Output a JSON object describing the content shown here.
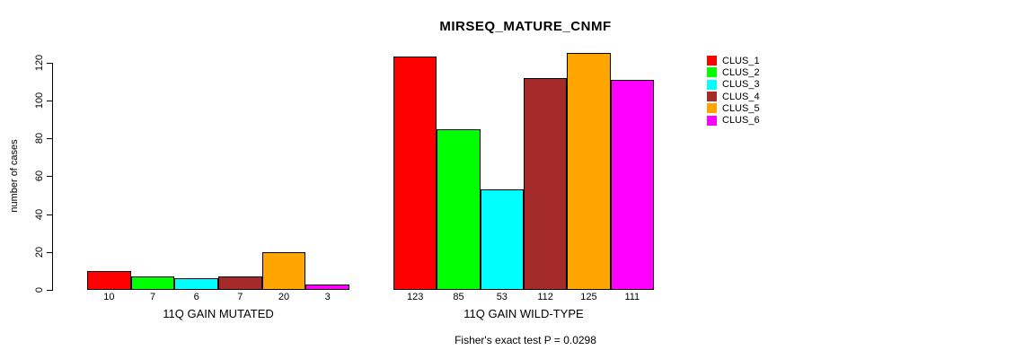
{
  "chart_data": {
    "type": "bar",
    "title": "MIRSEQ_MATURE_CNMF",
    "ylabel": "number of cases",
    "xlabel": "",
    "ylim": [
      0,
      127
    ],
    "yticks": [
      0,
      20,
      40,
      60,
      80,
      100,
      120
    ],
    "grid": false,
    "legend_position": "right",
    "legend_labels": [
      "CLUS_1",
      "CLUS_2",
      "CLUS_3",
      "CLUS_4",
      "CLUS_5",
      "CLUS_6"
    ],
    "series_colors": [
      "#FF0000",
      "#00FF00",
      "#00FFFF",
      "#A52A2A",
      "#FFA500",
      "#FF00FF"
    ],
    "groups": [
      {
        "label": "11Q GAIN MUTATED",
        "values": [
          10,
          7,
          6,
          7,
          20,
          3
        ]
      },
      {
        "label": "11Q GAIN WILD-TYPE",
        "values": [
          123,
          85,
          53,
          112,
          125,
          111
        ]
      }
    ],
    "annotation": "Fisher's exact test P = 0.0298"
  }
}
